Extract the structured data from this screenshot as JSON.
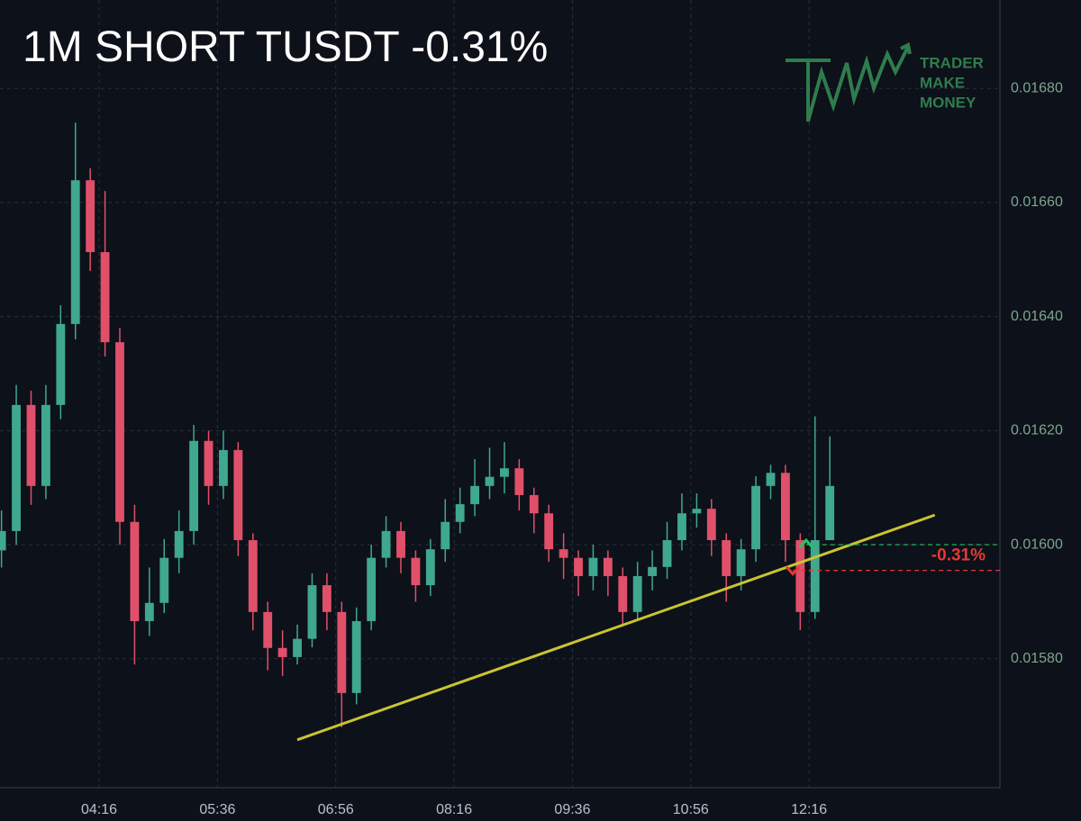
{
  "chart_data": {
    "type": "candlestick",
    "title": "1M SHORT TUSDT -0.31%",
    "logo": [
      "TRADER",
      "MAKE",
      "MONEY"
    ],
    "x": [
      "03:10",
      "03:20",
      "03:30",
      "03:40",
      "03:50",
      "04:00",
      "04:10",
      "04:20",
      "04:30",
      "04:40",
      "04:50",
      "05:00",
      "05:10",
      "05:20",
      "05:30",
      "05:40",
      "05:50",
      "06:00",
      "06:10",
      "06:20",
      "06:30",
      "06:40",
      "06:50",
      "07:00",
      "07:10",
      "07:20",
      "07:30",
      "07:40",
      "07:50",
      "08:00",
      "08:10",
      "08:20",
      "08:30",
      "08:40",
      "08:50",
      "09:00",
      "09:10",
      "09:20",
      "09:30",
      "09:40",
      "09:50",
      "10:00",
      "10:10",
      "10:20",
      "10:30",
      "10:40",
      "10:50",
      "11:00",
      "11:10",
      "11:20",
      "11:30",
      "11:40",
      "11:50",
      "12:00",
      "12:10",
      "12:20",
      "12:30"
    ],
    "open": [
      0.01599,
      0.016024,
      0.016245,
      0.016103,
      0.016245,
      0.016387,
      0.016639,
      0.016513,
      0.016355,
      0.01604,
      0.015866,
      0.015898,
      0.015977,
      0.016024,
      0.016182,
      0.016103,
      0.016166,
      0.016008,
      0.015882,
      0.015819,
      0.015803,
      0.015835,
      0.015929,
      0.015882,
      0.01574,
      0.015866,
      0.015977,
      0.016024,
      0.015977,
      0.015929,
      0.015992,
      0.01604,
      0.016071,
      0.016103,
      0.016119,
      0.016134,
      0.016087,
      0.016055,
      0.015992,
      0.015977,
      0.015945,
      0.015977,
      0.015945,
      0.015882,
      0.015945,
      0.015961,
      0.016008,
      0.016055,
      0.016063,
      0.016008,
      0.015945,
      0.015992,
      0.016103,
      0.016126,
      0.016008,
      0.015882,
      0.016008
    ],
    "high": [
      0.01606,
      0.01628,
      0.01627,
      0.01628,
      0.01642,
      0.01674,
      0.01666,
      0.01662,
      0.01638,
      0.01607,
      0.01596,
      0.01601,
      0.01606,
      0.01621,
      0.0162,
      0.0162,
      0.01618,
      0.01602,
      0.0159,
      0.01585,
      0.01586,
      0.01595,
      0.01595,
      0.0159,
      0.01589,
      0.016,
      0.01605,
      0.01604,
      0.01599,
      0.01601,
      0.01608,
      0.0161,
      0.01615,
      0.01617,
      0.01618,
      0.01615,
      0.0161,
      0.01607,
      0.01602,
      0.01599,
      0.016,
      0.01599,
      0.01596,
      0.01597,
      0.01599,
      0.01604,
      0.01609,
      0.01609,
      0.01608,
      0.01602,
      0.01601,
      0.01612,
      0.01614,
      0.01614,
      0.01602,
      0.016225,
      0.01619
    ],
    "low": [
      0.01596,
      0.016,
      0.01607,
      0.01608,
      0.01622,
      0.01636,
      0.01648,
      0.01633,
      0.016,
      0.01579,
      0.01584,
      0.01588,
      0.01595,
      0.016,
      0.01607,
      0.01608,
      0.01598,
      0.01585,
      0.01578,
      0.01577,
      0.01579,
      0.01582,
      0.01585,
      0.01568,
      0.01572,
      0.01585,
      0.01596,
      0.01595,
      0.0159,
      0.01591,
      0.01597,
      0.01602,
      0.01605,
      0.01608,
      0.01609,
      0.01606,
      0.01602,
      0.01597,
      0.01594,
      0.01591,
      0.01592,
      0.01591,
      0.01586,
      0.01587,
      0.01592,
      0.01594,
      0.01599,
      0.01603,
      0.01598,
      0.0159,
      0.01592,
      0.01597,
      0.01608,
      0.01597,
      0.01585,
      0.01587,
      0.01601
    ],
    "close": [
      0.016024,
      0.016245,
      0.016103,
      0.016245,
      0.016387,
      0.016639,
      0.016513,
      0.016355,
      0.01604,
      0.015866,
      0.015898,
      0.015977,
      0.016024,
      0.016182,
      0.016103,
      0.016166,
      0.016008,
      0.015882,
      0.015819,
      0.015803,
      0.015835,
      0.015929,
      0.015882,
      0.01574,
      0.015866,
      0.015977,
      0.016024,
      0.015977,
      0.015929,
      0.015992,
      0.01604,
      0.016071,
      0.016103,
      0.016119,
      0.016134,
      0.016087,
      0.016055,
      0.015992,
      0.015977,
      0.015945,
      0.015977,
      0.015945,
      0.015882,
      0.015945,
      0.015961,
      0.016008,
      0.016055,
      0.016063,
      0.016008,
      0.015945,
      0.015992,
      0.016103,
      0.016126,
      0.016008,
      0.015882,
      0.016008,
      0.016103
    ],
    "up_color": "#3fa88e",
    "down_color": "#e0506a",
    "trendline": {
      "x": [
        "06:30",
        "13:41"
      ],
      "values": [
        0.015658,
        0.016052
      ],
      "color": "#c9c431"
    },
    "markers": [
      {
        "x": "12:14",
        "value": 0.016,
        "color": "#22c55e"
      },
      {
        "x": "12:05",
        "value": 0.015955,
        "color": "#e53935",
        "label": "-0.31%"
      }
    ],
    "xlim": [
      "03:09",
      "14:25"
    ],
    "xticks": [
      "04:16",
      "05:36",
      "06:56",
      "08:16",
      "09:36",
      "10:56",
      "12:16"
    ],
    "ylim": [
      0.015574,
      0.016955
    ],
    "yticks": [
      {
        "value": 0.0158,
        "label": "0.01580"
      },
      {
        "value": 0.016,
        "label": "0.01600"
      },
      {
        "value": 0.0162,
        "label": "0.01620"
      },
      {
        "value": 0.0164,
        "label": "0.01640"
      },
      {
        "value": 0.0166,
        "label": "0.01660"
      },
      {
        "value": 0.0168,
        "label": "0.01680"
      }
    ],
    "grid": true
  }
}
